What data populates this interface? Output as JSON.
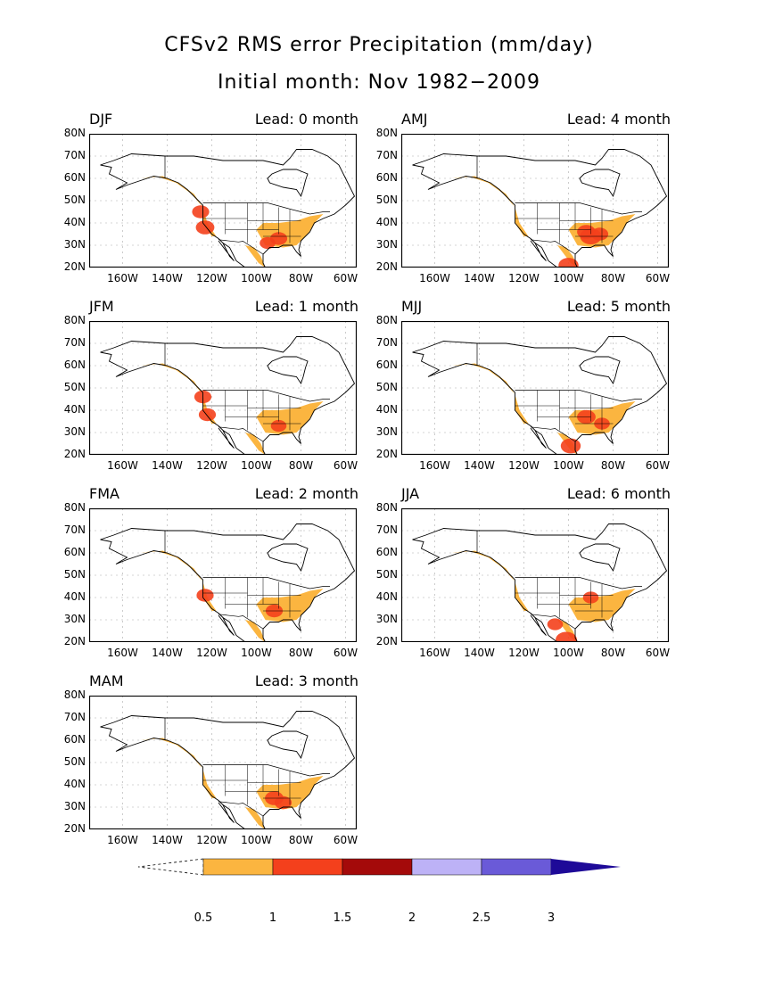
{
  "title_line1": "CFSv2 RMS error Precipitation (mm/day)",
  "title_line2": "Initial month: Nov 1982−2009",
  "lat_labels": [
    "80N",
    "70N",
    "60N",
    "50N",
    "40N",
    "30N",
    "20N"
  ],
  "lon_labels": [
    "160W",
    "140W",
    "120W",
    "100W",
    "80W",
    "60W"
  ],
  "panels": [
    {
      "season": "DJF",
      "lead": "Lead: 0 month",
      "hot": [
        [
          -125,
          45,
          1.2
        ],
        [
          -123,
          38,
          1.3
        ],
        [
          -90,
          33,
          1.2
        ],
        [
          -95,
          31,
          1.1
        ]
      ]
    },
    {
      "season": "AMJ",
      "lead": "Lead: 4 month",
      "hot": [
        [
          -90,
          34,
          1.5
        ],
        [
          -92,
          36,
          1.3
        ],
        [
          -86,
          35,
          1.2
        ],
        [
          -100,
          21,
          1.4
        ]
      ]
    },
    {
      "season": "JFM",
      "lead": "Lead: 1 month",
      "hot": [
        [
          -124,
          46,
          1.2
        ],
        [
          -122,
          38,
          1.2
        ],
        [
          -90,
          33,
          1.1
        ]
      ]
    },
    {
      "season": "MJJ",
      "lead": "Lead: 5 month",
      "hot": [
        [
          -92,
          37,
          1.3
        ],
        [
          -99,
          24,
          1.4
        ],
        [
          -85,
          34,
          1.1
        ]
      ]
    },
    {
      "season": "FMA",
      "lead": "Lead: 2 month",
      "hot": [
        [
          -123,
          41,
          1.2
        ],
        [
          -92,
          34,
          1.2
        ]
      ]
    },
    {
      "season": "JJA",
      "lead": "Lead: 6 month",
      "hot": [
        [
          -101,
          21,
          1.5
        ],
        [
          -106,
          28,
          1.1
        ],
        [
          -90,
          40,
          1.1
        ]
      ]
    },
    {
      "season": "MAM",
      "lead": "Lead: 3 month",
      "hot": [
        [
          -92,
          34,
          1.3
        ],
        [
          -88,
          32,
          1.2
        ]
      ]
    }
  ],
  "colorbar": {
    "levels": [
      "0.5",
      "1",
      "1.5",
      "2",
      "2.5",
      "3"
    ],
    "colors": [
      "#ffffff",
      "#fbb540",
      "#f4401c",
      "#a40a0a",
      "#bdb2f6",
      "#6a5ad8",
      "#1e0a98"
    ]
  }
}
